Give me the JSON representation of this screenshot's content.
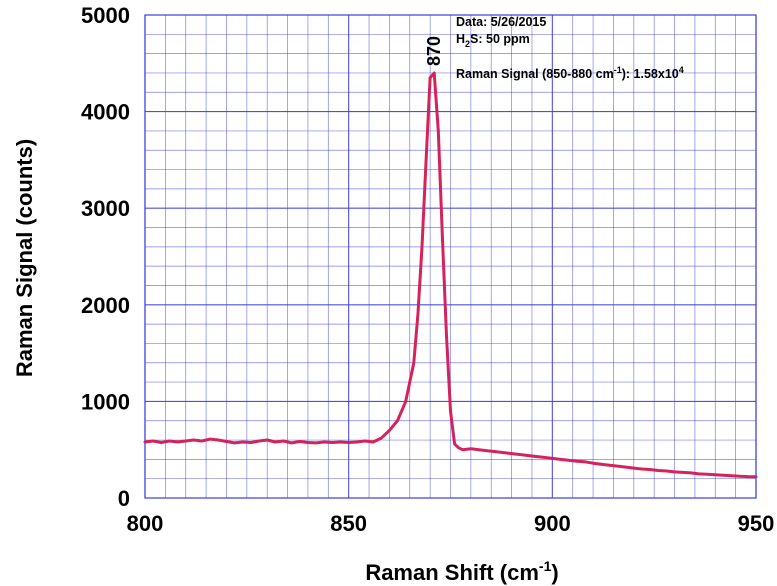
{
  "chart_data": {
    "type": "line",
    "xlabel": "Raman Shift (cm-1)",
    "xlabel_main": "Raman Shift (cm",
    "xlabel_sup": "-1",
    "xlabel_end": ")",
    "ylabel": "Raman Signal (counts)",
    "xlim": [
      800,
      950
    ],
    "ylim": [
      0,
      5000
    ],
    "x_ticks": [
      "800",
      "850",
      "900",
      "950"
    ],
    "y_ticks": [
      "0",
      "1000",
      "2000",
      "3000",
      "4000",
      "5000"
    ],
    "grid": true,
    "line_color": "#d6225a",
    "grid_color": "#3d3de0",
    "peak_label": "870",
    "annotations": {
      "date": "Data: 5/26/2015",
      "gas_prefix": "H",
      "gas_sub": "2",
      "gas_rest": "S: 50 ppm",
      "signal_prefix": "Raman Signal (850-880 cm",
      "signal_sup1": "-1",
      "signal_mid": "): 1.58x10",
      "signal_sup2": "4"
    },
    "series": [
      {
        "x": [
          800,
          802,
          804,
          806,
          808,
          810,
          812,
          814,
          816,
          818,
          820,
          822,
          824,
          826,
          828,
          830,
          832,
          834,
          836,
          838,
          840,
          842,
          844,
          846,
          848,
          850,
          852,
          854,
          856,
          858,
          860,
          862,
          864,
          866,
          867,
          868,
          869,
          870,
          871,
          872,
          873,
          874,
          875,
          876,
          877,
          878,
          880,
          882,
          884,
          886,
          888,
          890,
          892,
          894,
          896,
          898,
          900,
          902,
          904,
          906,
          908,
          910,
          912,
          914,
          916,
          918,
          920,
          922,
          924,
          926,
          928,
          930,
          932,
          934,
          936,
          938,
          940,
          942,
          944,
          946,
          948,
          950
        ],
        "y": [
          580,
          590,
          575,
          590,
          580,
          590,
          600,
          590,
          610,
          600,
          585,
          570,
          580,
          575,
          590,
          600,
          580,
          590,
          570,
          585,
          575,
          570,
          580,
          575,
          580,
          575,
          580,
          590,
          580,
          620,
          700,
          800,
          1000,
          1400,
          1900,
          2600,
          3500,
          4350,
          4400,
          3800,
          2700,
          1700,
          900,
          560,
          520,
          500,
          510,
          500,
          490,
          480,
          470,
          460,
          450,
          440,
          430,
          420,
          410,
          400,
          390,
          380,
          375,
          360,
          350,
          340,
          330,
          320,
          310,
          300,
          295,
          285,
          280,
          270,
          265,
          260,
          250,
          245,
          240,
          235,
          230,
          225,
          222,
          220
        ]
      }
    ]
  }
}
